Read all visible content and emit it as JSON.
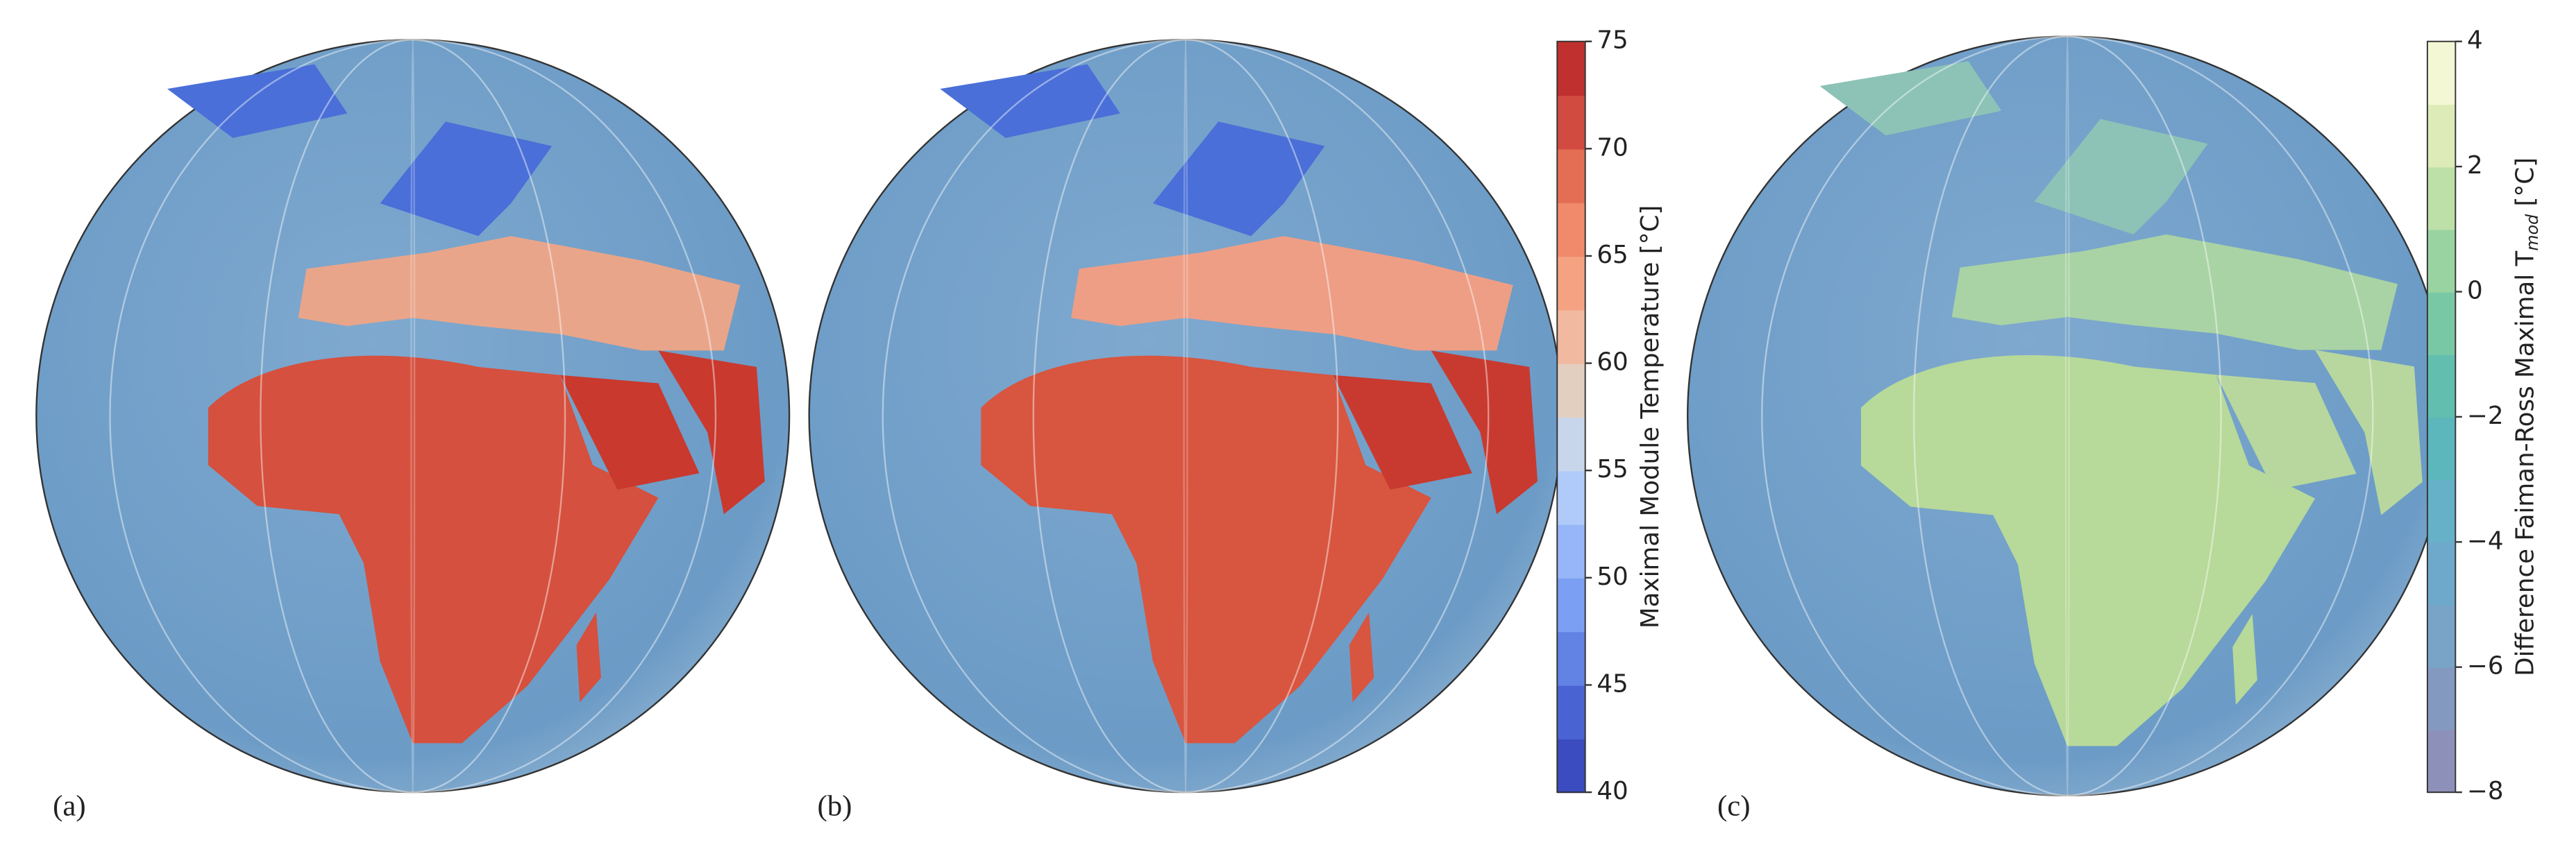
{
  "panels": [
    {
      "label": "(a)"
    },
    {
      "label": "(b)"
    },
    {
      "label": "(c)"
    }
  ],
  "colorbars": [
    {
      "label_parts": [
        "Maximal Module Temperature [°C]"
      ],
      "lim": [
        40,
        75
      ],
      "ticks": [
        40,
        45,
        50,
        55,
        60,
        65,
        70,
        75
      ],
      "colors": [
        "#3b4cc0",
        "#4a63d3",
        "#6282e4",
        "#7b9ff2",
        "#96b6f8",
        "#b0cbf9",
        "#c8d6ec",
        "#e3cfc0",
        "#f1b99f",
        "#f5a283",
        "#f08a6a",
        "#e46e54",
        "#d24b40",
        "#c0302e"
      ]
    },
    {
      "label_parts": [
        "Difference Faiman-Ross Maximal T",
        "mod",
        " [°C]"
      ],
      "lim": [
        -8,
        4
      ],
      "ticks": [
        {
          "value": -8,
          "label": "−8"
        },
        {
          "value": -6,
          "label": "−6"
        },
        {
          "value": -4,
          "label": "−4"
        },
        {
          "value": -2,
          "label": "−2"
        },
        0,
        2,
        4
      ],
      "colors": [
        "#8d90b8",
        "#8499c0",
        "#7aa3c8",
        "#6ea9cc",
        "#66b0c8",
        "#5cb7bd",
        "#62bfb0",
        "#78c8a6",
        "#9ad3a2",
        "#bde0a8",
        "#dcebb8",
        "#f4f7d4"
      ]
    }
  ]
}
